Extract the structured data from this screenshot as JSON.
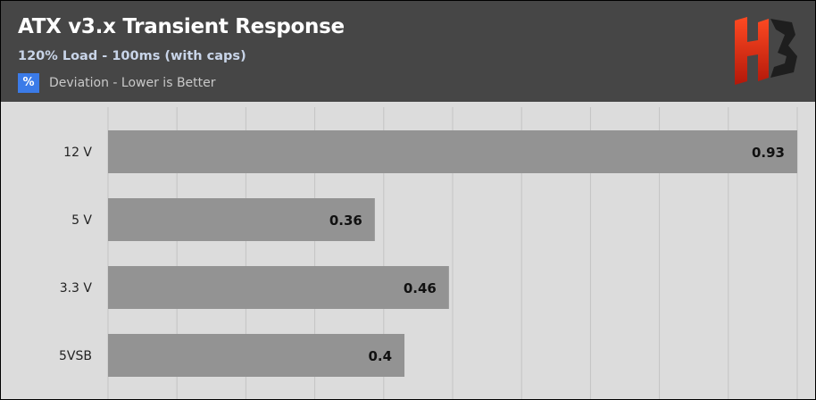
{
  "header": {
    "title": "ATX v3.x Transient Response",
    "subtitle": "120% Load - 100ms (with caps)",
    "unit_symbol": "%",
    "unit_description": "Deviation - Lower is Better",
    "logo_icon": "hb-logo-icon"
  },
  "colors": {
    "header_bg": "#464646",
    "plot_bg": "#dcdcdc",
    "bar": "#939393",
    "unit_badge": "#3b7be8",
    "logo_top": "#ff3d1f",
    "logo_bottom": "#b3180a"
  },
  "chart_data": {
    "type": "bar",
    "orientation": "horizontal",
    "categories": [
      "12 V",
      "5 V",
      "3.3 V",
      "5VSB"
    ],
    "values": [
      0.93,
      0.36,
      0.46,
      0.4
    ],
    "value_labels": [
      "0.93",
      "0.36",
      "0.46",
      "0.4"
    ],
    "xlim": [
      0,
      0.93
    ],
    "grid": true,
    "legend": "none"
  }
}
